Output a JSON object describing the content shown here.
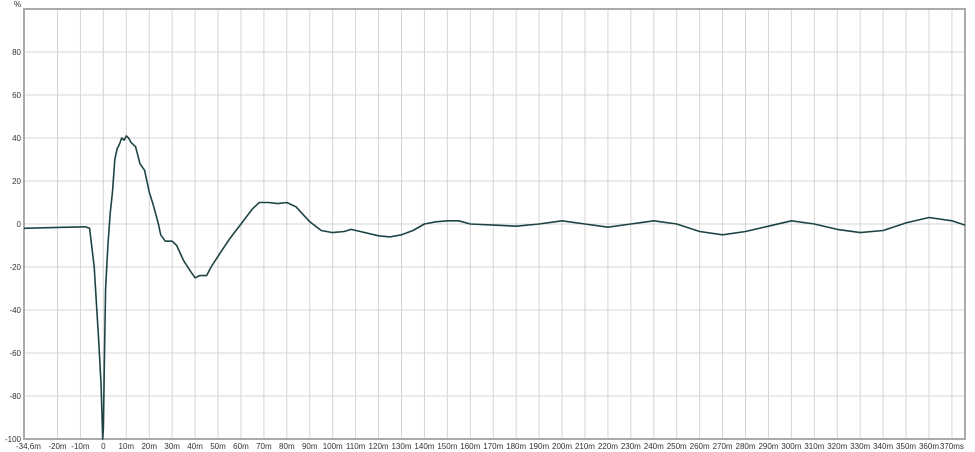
{
  "chart_data": {
    "type": "line",
    "title": "",
    "xlabel": "",
    "ylabel": "%",
    "xlim": [
      -34.6,
      375.7
    ],
    "ylim": [
      -100,
      100
    ],
    "grid": true,
    "x_ticks": [
      {
        "v": -34.6,
        "label": "-34,6m"
      },
      {
        "v": -20,
        "label": "-20m"
      },
      {
        "v": -10,
        "label": "-10m"
      },
      {
        "v": 0,
        "label": "0"
      },
      {
        "v": 10,
        "label": "10m"
      },
      {
        "v": 20,
        "label": "20m"
      },
      {
        "v": 30,
        "label": "30m"
      },
      {
        "v": 40,
        "label": "40m"
      },
      {
        "v": 50,
        "label": "50m"
      },
      {
        "v": 60,
        "label": "60m"
      },
      {
        "v": 70,
        "label": "70m"
      },
      {
        "v": 80,
        "label": "80m"
      },
      {
        "v": 90,
        "label": "90m"
      },
      {
        "v": 100,
        "label": "100m"
      },
      {
        "v": 110,
        "label": "110m"
      },
      {
        "v": 120,
        "label": "120m"
      },
      {
        "v": 130,
        "label": "130m"
      },
      {
        "v": 140,
        "label": "140m"
      },
      {
        "v": 150,
        "label": "150m"
      },
      {
        "v": 160,
        "label": "160m"
      },
      {
        "v": 170,
        "label": "170m"
      },
      {
        "v": 180,
        "label": "180m"
      },
      {
        "v": 190,
        "label": "190m"
      },
      {
        "v": 200,
        "label": "200m"
      },
      {
        "v": 210,
        "label": "210m"
      },
      {
        "v": 220,
        "label": "220m"
      },
      {
        "v": 230,
        "label": "230m"
      },
      {
        "v": 240,
        "label": "240m"
      },
      {
        "v": 250,
        "label": "250m"
      },
      {
        "v": 260,
        "label": "260m"
      },
      {
        "v": 270,
        "label": "270m"
      },
      {
        "v": 280,
        "label": "280m"
      },
      {
        "v": 290,
        "label": "290m"
      },
      {
        "v": 300,
        "label": "300m"
      },
      {
        "v": 310,
        "label": "310m"
      },
      {
        "v": 320,
        "label": "320m"
      },
      {
        "v": 330,
        "label": "330m"
      },
      {
        "v": 340,
        "label": "340m"
      },
      {
        "v": 350,
        "label": "350m"
      },
      {
        "v": 360,
        "label": "360m"
      },
      {
        "v": 370,
        "label": "370ms"
      }
    ],
    "y_ticks": [
      {
        "v": 80,
        "label": "80"
      },
      {
        "v": 60,
        "label": "60"
      },
      {
        "v": 40,
        "label": "40"
      },
      {
        "v": 20,
        "label": "20"
      },
      {
        "v": 0,
        "label": "0"
      },
      {
        "v": -20,
        "label": "-20"
      },
      {
        "v": -40,
        "label": "-40"
      },
      {
        "v": -60,
        "label": "-60"
      },
      {
        "v": -80,
        "label": "-80"
      },
      {
        "v": -100,
        "label": "-100"
      }
    ],
    "series": [
      {
        "color": "#1d4444",
        "x": [
          -34.6,
          -20,
          -8,
          -6,
          -4,
          -2,
          -1,
          -0.3,
          0,
          0.5,
          1,
          2,
          3,
          4,
          5,
          6,
          7,
          8,
          9,
          10,
          11,
          12,
          14,
          15,
          16,
          18,
          20,
          22,
          24,
          25,
          27,
          30,
          32,
          35,
          38,
          40,
          42,
          45,
          47,
          50,
          55,
          60,
          65,
          68,
          72,
          76,
          80,
          84,
          90,
          95,
          100,
          105,
          108,
          112,
          120,
          125,
          130,
          135,
          140,
          145,
          150,
          155,
          160,
          170,
          180,
          190,
          200,
          210,
          220,
          230,
          240,
          250,
          260,
          270,
          280,
          290,
          300,
          310,
          320,
          330,
          340,
          350,
          360,
          370,
          375.7
        ],
        "y": [
          -2,
          -1.6,
          -1.3,
          -2,
          -20,
          -55,
          -75,
          -100,
          -95,
          -60,
          -30,
          -10,
          5,
          15,
          30,
          35,
          37,
          40,
          39,
          41,
          40,
          38,
          36,
          32,
          28,
          25,
          15,
          8,
          0,
          -5,
          -8,
          -8,
          -10,
          -17,
          -22,
          -25,
          -24,
          -24,
          -20,
          -15,
          -7,
          0,
          7,
          10,
          10,
          9.5,
          10,
          8,
          1,
          -3,
          -4,
          -3.5,
          -2.5,
          -3.5,
          -5.5,
          -6,
          -5,
          -3,
          0,
          1,
          1.5,
          1.5,
          0,
          -0.5,
          -1,
          0,
          1.5,
          0,
          -1.5,
          0,
          1.5,
          0,
          -3.5,
          -5,
          -3.5,
          -1,
          1.5,
          0,
          -2.5,
          -4,
          -3,
          0.5,
          3,
          1.5,
          -0.5
        ]
      }
    ]
  }
}
